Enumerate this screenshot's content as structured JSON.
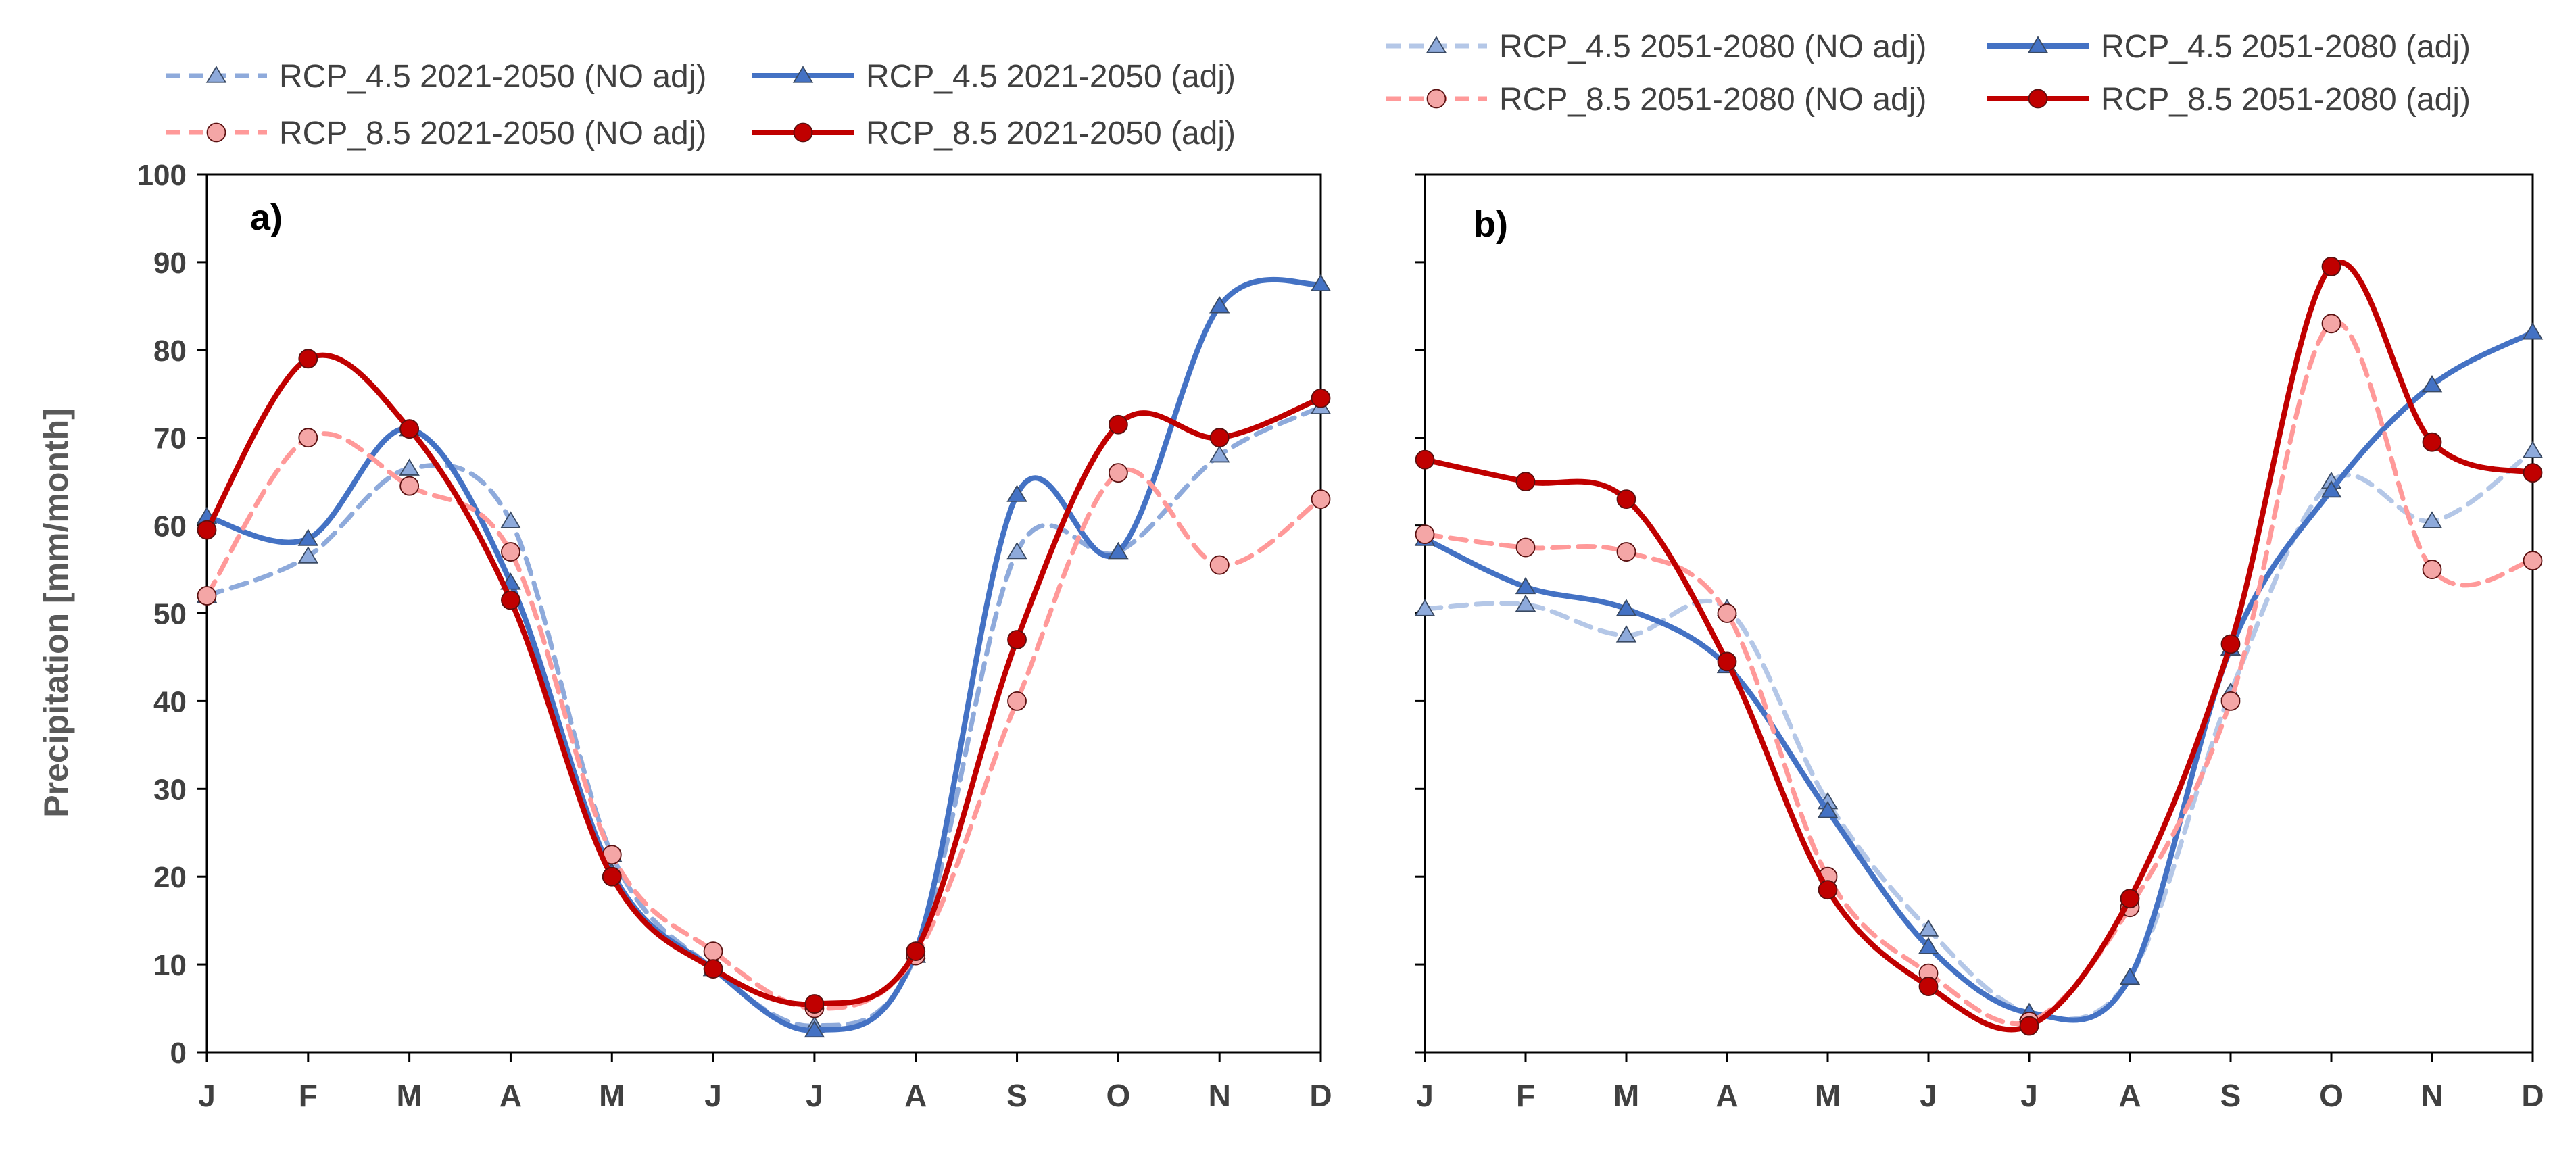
{
  "chart_data": [
    {
      "type": "line",
      "panel_label": "a)",
      "ylabel": "Precipitation  [mm/month]",
      "ylim": [
        0,
        100
      ],
      "yticks": [
        "0",
        "10",
        "20",
        "30",
        "40",
        "50",
        "60",
        "70",
        "80",
        "90",
        "100"
      ],
      "categories": [
        "J",
        "F",
        "M",
        "A",
        "M",
        "J",
        "J",
        "A",
        "S",
        "O",
        "N",
        "D"
      ],
      "series": [
        {
          "name": "RCP_4.5 2021-2050 (NO adj)",
          "color": "#8eaadb",
          "dashed": true,
          "marker": "triangle",
          "marker_fill": "#8eaadb",
          "values": [
            52,
            56.5,
            66.5,
            60.5,
            22.5,
            9.5,
            3,
            11,
            57,
            57,
            68,
            73.5
          ]
        },
        {
          "name": "RCP_4.5 2021-2050 (adj)",
          "color": "#4472c4",
          "dashed": false,
          "marker": "triangle",
          "marker_fill": "#4472c4",
          "values": [
            61,
            58.5,
            71,
            53.5,
            20.5,
            9.5,
            2.5,
            11.5,
            63.5,
            57,
            85,
            87.5
          ]
        },
        {
          "name": "RCP_8.5 2021-2050 (NO adj)",
          "color": "#ff9999",
          "dashed": true,
          "marker": "circle",
          "marker_fill": "#f4a6a6",
          "values": [
            52,
            70,
            64.5,
            57,
            22.5,
            11.5,
            5,
            11,
            40,
            66,
            55.5,
            63
          ]
        },
        {
          "name": "RCP_8.5 2021-2050 (adj)",
          "color": "#c00000",
          "dashed": false,
          "marker": "circle",
          "marker_fill": "#c00000",
          "values": [
            59.5,
            79,
            71,
            51.5,
            20,
            9.5,
            5.5,
            11.5,
            47,
            71.5,
            70,
            74.5
          ]
        }
      ]
    },
    {
      "type": "line",
      "panel_label": "b)",
      "ylim": [
        0,
        100
      ],
      "categories": [
        "J",
        "F",
        "M",
        "A",
        "M",
        "J",
        "J",
        "A",
        "S",
        "O",
        "N",
        "D"
      ],
      "series": [
        {
          "name": "RCP_4.5 2051-2080 (NO adj)",
          "color": "#b4c7e7",
          "dashed": true,
          "marker": "triangle",
          "marker_fill": "#8eaadb",
          "values": [
            50.5,
            51,
            47.5,
            50.5,
            28.5,
            14,
            4.5,
            8.5,
            41,
            65,
            60.5,
            68.5
          ]
        },
        {
          "name": "RCP_4.5 2051-2080 (adj)",
          "color": "#4472c4",
          "dashed": false,
          "marker": "triangle",
          "marker_fill": "#4472c4",
          "values": [
            58.5,
            53,
            50.5,
            44,
            27.5,
            12,
            4.5,
            8.5,
            46,
            64,
            76,
            82
          ]
        },
        {
          "name": "RCP_8.5 2051-2080 (NO adj)",
          "color": "#ff9999",
          "dashed": true,
          "marker": "circle",
          "marker_fill": "#f4a6a6",
          "values": [
            59,
            57.5,
            57,
            50,
            20,
            9,
            3.5,
            16.5,
            40,
            83,
            55,
            56
          ]
        },
        {
          "name": "RCP_8.5 2051-2080 (adj)",
          "color": "#c00000",
          "dashed": false,
          "marker": "circle",
          "marker_fill": "#c00000",
          "values": [
            67.5,
            65,
            63,
            44.5,
            18.5,
            7.5,
            3,
            17.5,
            46.5,
            89.5,
            69.5,
            66
          ]
        }
      ]
    }
  ]
}
